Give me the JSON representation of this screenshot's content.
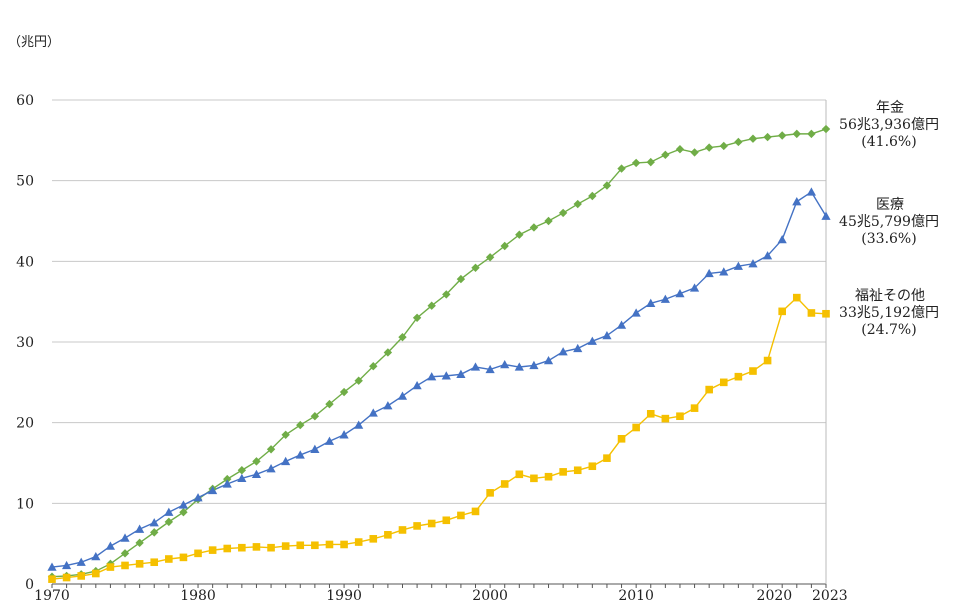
{
  "chart_data": {
    "type": "line",
    "title": "",
    "xlabel": "",
    "ylabel": "",
    "y_unit": "（兆円）",
    "ylim": [
      0,
      60
    ],
    "yticks": [
      0,
      10,
      20,
      30,
      40,
      50,
      60
    ],
    "xlim": [
      1970,
      2023
    ],
    "xticks": [
      1970,
      1980,
      1990,
      2000,
      2010,
      2020,
      2023
    ],
    "grid": "horizontal",
    "x": [
      1970,
      1971,
      1972,
      1973,
      1974,
      1975,
      1976,
      1977,
      1978,
      1979,
      1980,
      1981,
      1982,
      1983,
      1984,
      1985,
      1986,
      1987,
      1988,
      1989,
      1990,
      1991,
      1992,
      1993,
      1994,
      1995,
      1996,
      1997,
      1998,
      1999,
      2000,
      2001,
      2002,
      2003,
      2004,
      2005,
      2006,
      2007,
      2008,
      2009,
      2010,
      2011,
      2012,
      2013,
      2014,
      2015,
      2016,
      2017,
      2018,
      2019,
      2020,
      2021,
      2022,
      2023
    ],
    "series": [
      {
        "key": "pension",
        "color": "#70ad47",
        "marker": "diamond",
        "values": [
          0.9,
          1.0,
          1.2,
          1.6,
          2.5,
          3.8,
          5.1,
          6.4,
          7.7,
          8.9,
          10.5,
          11.8,
          13.0,
          14.1,
          15.2,
          16.7,
          18.5,
          19.7,
          20.8,
          22.3,
          23.8,
          25.2,
          27.0,
          28.7,
          30.6,
          33.0,
          34.5,
          35.9,
          37.8,
          39.2,
          40.5,
          41.9,
          43.3,
          44.2,
          45.0,
          46.0,
          47.1,
          48.1,
          49.4,
          51.5,
          52.2,
          52.3,
          53.2,
          53.9,
          53.5,
          54.1,
          54.3,
          54.8,
          55.2,
          55.4,
          55.6,
          55.8,
          55.8,
          56.4
        ],
        "annotation": [
          "年金",
          "56兆3,936億円",
          "(41.6%)"
        ]
      },
      {
        "key": "medical",
        "color": "#4472c4",
        "marker": "triangle",
        "values": [
          2.1,
          2.3,
          2.7,
          3.4,
          4.7,
          5.7,
          6.8,
          7.6,
          8.9,
          9.8,
          10.7,
          11.6,
          12.4,
          13.1,
          13.6,
          14.3,
          15.2,
          16.0,
          16.7,
          17.7,
          18.5,
          19.7,
          21.2,
          22.1,
          23.3,
          24.6,
          25.7,
          25.8,
          26.0,
          26.9,
          26.6,
          27.2,
          26.9,
          27.1,
          27.7,
          28.8,
          29.2,
          30.1,
          30.8,
          32.1,
          33.6,
          34.8,
          35.3,
          36.0,
          36.7,
          38.5,
          38.7,
          39.4,
          39.7,
          40.7,
          42.7,
          47.4,
          48.6,
          45.6
        ],
        "annotation": [
          "医療",
          "45兆5,799億円",
          "(33.6%)"
        ]
      },
      {
        "key": "welfare",
        "color": "#f5c000",
        "marker": "square",
        "values": [
          0.6,
          0.8,
          1.0,
          1.3,
          2.1,
          2.3,
          2.5,
          2.7,
          3.1,
          3.3,
          3.8,
          4.2,
          4.4,
          4.5,
          4.6,
          4.5,
          4.7,
          4.8,
          4.8,
          4.9,
          4.9,
          5.2,
          5.6,
          6.1,
          6.7,
          7.2,
          7.5,
          7.9,
          8.5,
          9.0,
          11.3,
          12.4,
          13.6,
          13.1,
          13.3,
          13.9,
          14.1,
          14.6,
          15.6,
          18.0,
          19.4,
          21.1,
          20.5,
          20.8,
          21.8,
          24.1,
          25.0,
          25.7,
          26.4,
          27.7,
          33.8,
          35.5,
          33.6,
          33.5
        ],
        "annotation": [
          "福祉その他",
          "33兆5,192億円",
          "(24.7%)"
        ]
      }
    ]
  }
}
